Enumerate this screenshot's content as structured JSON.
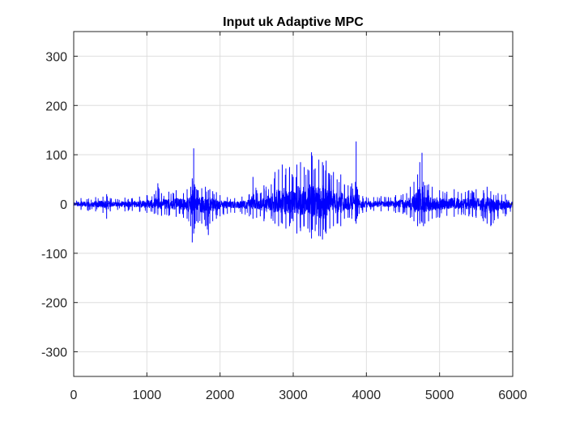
{
  "chart_data": {
    "type": "line",
    "title": "Input uk Adaptive MPC",
    "xlabel": "",
    "ylabel": "",
    "xlim": [
      0,
      6000
    ],
    "ylim": [
      -350,
      350
    ],
    "xticks": [
      0,
      1000,
      2000,
      3000,
      4000,
      5000,
      6000
    ],
    "yticks": [
      -300,
      -200,
      -100,
      0,
      100,
      200,
      300
    ],
    "xtick_labels": [
      "0",
      "1000",
      "2000",
      "3000",
      "4000",
      "5000",
      "6000"
    ],
    "ytick_labels": [
      "-300",
      "-200",
      "-100",
      "0",
      "100",
      "200",
      "300"
    ],
    "grid": true,
    "line_color": "#0000ff",
    "series": [
      {
        "x": [
          0,
          100,
          200,
          300,
          400,
          450,
          500,
          600,
          700,
          800,
          900,
          1000,
          1100,
          1150,
          1200,
          1300,
          1400,
          1500,
          1550,
          1600,
          1620,
          1640,
          1650,
          1660,
          1680,
          1700,
          1750,
          1800,
          1840,
          1860,
          1900,
          1950,
          2000,
          2100,
          2200,
          2300,
          2400,
          2450,
          2500,
          2550,
          2600,
          2700,
          2750,
          2800,
          2850,
          2900,
          2950,
          3000,
          3050,
          3100,
          3150,
          3200,
          3250,
          3300,
          3350,
          3400,
          3450,
          3500,
          3550,
          3600,
          3650,
          3700,
          3750,
          3800,
          3850,
          3860,
          3870,
          3880,
          3900,
          3950,
          4000,
          4100,
          4200,
          4300,
          4400,
          4500,
          4550,
          4600,
          4650,
          4700,
          4730,
          4760,
          4780,
          4800,
          4850,
          4900,
          5000,
          5100,
          5200,
          5300,
          5400,
          5500,
          5600,
          5650,
          5700,
          5800,
          5900,
          6000
        ],
        "upper": [
          8,
          12,
          10,
          14,
          15,
          20,
          12,
          10,
          13,
          12,
          15,
          18,
          20,
          42,
          22,
          25,
          28,
          22,
          30,
          35,
          52,
          113,
          40,
          35,
          30,
          28,
          32,
          35,
          28,
          30,
          26,
          24,
          18,
          14,
          12,
          15,
          20,
          55,
          28,
          22,
          38,
          40,
          65,
          70,
          80,
          72,
          75,
          55,
          80,
          85,
          75,
          70,
          105,
          72,
          90,
          85,
          88,
          60,
          65,
          50,
          60,
          40,
          38,
          42,
          45,
          127,
          35,
          30,
          18,
          16,
          14,
          14,
          16,
          14,
          18,
          20,
          22,
          35,
          45,
          60,
          85,
          104,
          45,
          38,
          40,
          35,
          28,
          25,
          30,
          22,
          28,
          30,
          28,
          35,
          26,
          22,
          20,
          15
        ],
        "lower": [
          -8,
          -12,
          -14,
          -15,
          -18,
          -30,
          -15,
          -12,
          -15,
          -14,
          -16,
          -18,
          -20,
          -22,
          -24,
          -24,
          -26,
          -28,
          -30,
          -45,
          -78,
          -60,
          -50,
          -40,
          -35,
          -38,
          -40,
          -45,
          -63,
          -40,
          -35,
          -30,
          -25,
          -20,
          -18,
          -20,
          -25,
          -30,
          -28,
          -25,
          -35,
          -30,
          -40,
          -45,
          -40,
          -50,
          -45,
          -35,
          -60,
          -55,
          -45,
          -50,
          -70,
          -55,
          -65,
          -72,
          -60,
          -50,
          -45,
          -40,
          -45,
          -30,
          -28,
          -30,
          -35,
          -40,
          -30,
          -25,
          -20,
          -18,
          -16,
          -14,
          -15,
          -14,
          -18,
          -20,
          -22,
          -28,
          -35,
          -45,
          -40,
          -38,
          -45,
          -40,
          -35,
          -30,
          -28,
          -24,
          -26,
          -22,
          -25,
          -28,
          -35,
          -40,
          -45,
          -30,
          -25,
          -20
        ]
      }
    ]
  }
}
